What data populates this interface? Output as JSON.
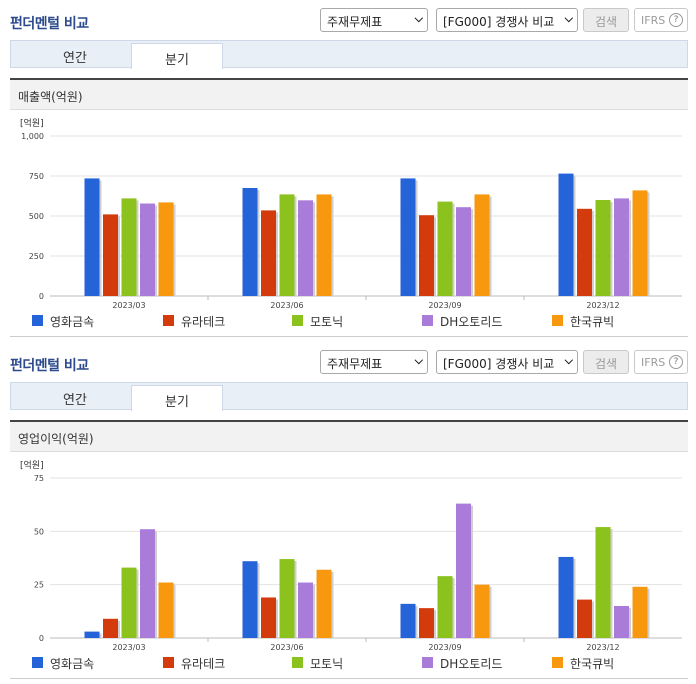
{
  "panels": [
    {
      "title": "펀더멘털 비교",
      "select1": "주재무제표",
      "select2": "[FG000] 경쟁사 비교",
      "search_label": "검색",
      "ifrs_label": "IFRS",
      "ifrs_help": "?",
      "tabs": [
        "연간",
        "분기"
      ],
      "active_tab": "분기",
      "section_title": "매출액(억원)"
    },
    {
      "title": "펀더멘털 비교",
      "select1": "주재무제표",
      "select2": "[FG000] 경쟁사 비교",
      "search_label": "검색",
      "ifrs_label": "IFRS",
      "ifrs_help": "?",
      "tabs": [
        "연간",
        "분기"
      ],
      "active_tab": "분기",
      "section_title": "영업이익(억원)"
    }
  ],
  "colors": {
    "영화금속": "#2563d9",
    "유라테크": "#d33a0c",
    "모토닉": "#8cc21e",
    "DH오토리드": "#a87cd8",
    "한국큐빅": "#f7980f"
  },
  "chart_data": [
    {
      "type": "bar",
      "title": "매출액(억원)",
      "unit_label": "[억원]",
      "categories": [
        "2023/03",
        "2023/06",
        "2023/09",
        "2023/12"
      ],
      "ylim": [
        0,
        1000
      ],
      "yticks": [
        "0",
        "250",
        "500",
        "750",
        "1,000"
      ],
      "ytick_values": [
        0,
        250,
        500,
        750,
        1000
      ],
      "grid": true,
      "legend": "bottom",
      "series": [
        {
          "name": "영화금속",
          "values": [
            735,
            675,
            735,
            765
          ]
        },
        {
          "name": "유라테크",
          "values": [
            510,
            535,
            505,
            545
          ]
        },
        {
          "name": "모토닉",
          "values": [
            610,
            635,
            590,
            600
          ]
        },
        {
          "name": "DH오토리드",
          "values": [
            578,
            598,
            555,
            610
          ]
        },
        {
          "name": "한국큐빅",
          "values": [
            585,
            635,
            635,
            660
          ]
        }
      ]
    },
    {
      "type": "bar",
      "title": "영업이익(억원)",
      "unit_label": "[억원]",
      "categories": [
        "2023/03",
        "2023/06",
        "2023/09",
        "2023/12"
      ],
      "ylim": [
        0,
        75
      ],
      "yticks": [
        "0",
        "25",
        "50",
        "75"
      ],
      "ytick_values": [
        0,
        25,
        50,
        75
      ],
      "grid": true,
      "legend": "bottom",
      "series": [
        {
          "name": "영화금속",
          "values": [
            3,
            36,
            16,
            38
          ]
        },
        {
          "name": "유라테크",
          "values": [
            9,
            19,
            14,
            18
          ]
        },
        {
          "name": "모토닉",
          "values": [
            33,
            37,
            29,
            52
          ]
        },
        {
          "name": "DH오토리드",
          "values": [
            51,
            26,
            63,
            15
          ]
        },
        {
          "name": "한국큐빅",
          "values": [
            26,
            32,
            25,
            24
          ]
        }
      ]
    }
  ]
}
